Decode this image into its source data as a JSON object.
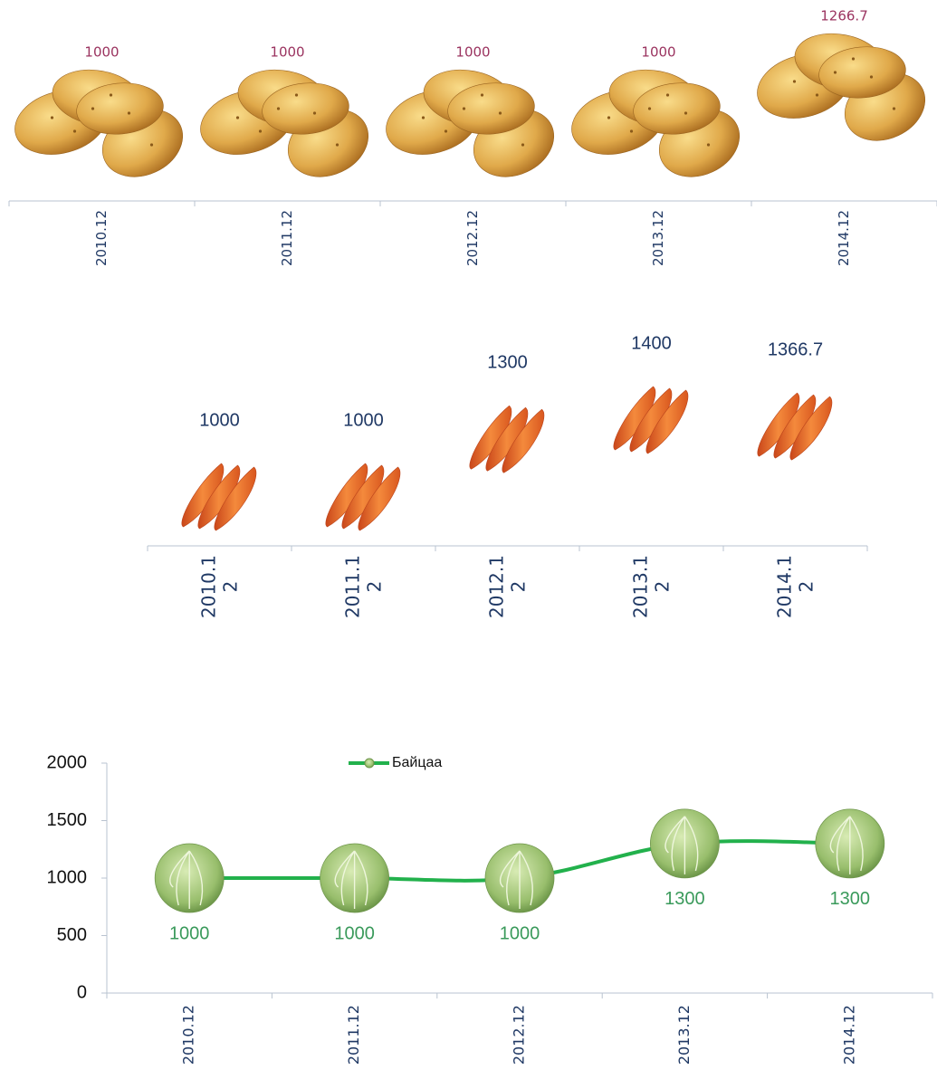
{
  "chart_data": [
    {
      "type": "pictogram",
      "categories": [
        "2010.12",
        "2011.12",
        "2012.12",
        "2013.12",
        "2014.12"
      ],
      "values": [
        1000,
        1000,
        1000,
        1000,
        1266.7
      ]
    },
    {
      "type": "pictogram",
      "categories": [
        "2010.12",
        "2011.12",
        "2012.12",
        "2013.12",
        "2014.12"
      ],
      "values": [
        1000,
        1000,
        1300,
        1400,
        1366.7
      ]
    },
    {
      "type": "line",
      "categories": [
        "2010.12",
        "2011.12",
        "2012.12",
        "2013.12",
        "2014.12"
      ],
      "series": [
        {
          "name": "Байцаа",
          "color": "#22b14c",
          "values": [
            1000,
            1000,
            1000,
            1300,
            1300
          ]
        }
      ],
      "ylim": [
        0,
        2000
      ],
      "yticks": [
        0,
        500,
        1000,
        1500,
        2000
      ],
      "legend": "top"
    }
  ]
}
